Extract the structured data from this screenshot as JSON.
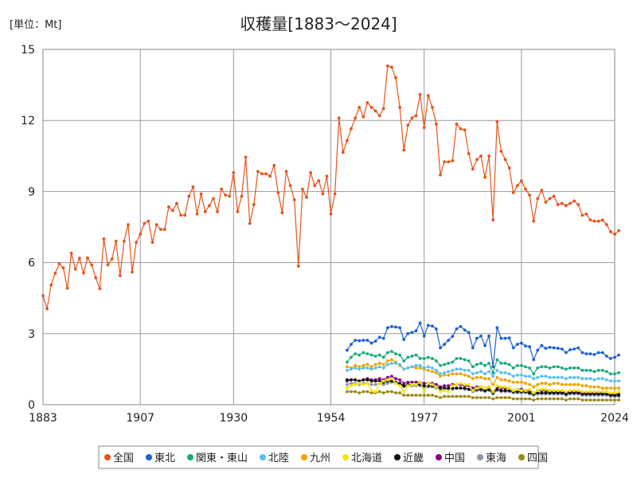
{
  "chart_data": {
    "type": "line",
    "title": "収穫量[1883～2024]",
    "unit_label": "[単位：Mt]",
    "xlabel": "",
    "ylabel": "",
    "xlim": [
      1883,
      2024
    ],
    "ylim": [
      0,
      15
    ],
    "x_ticks": [
      1883,
      1907,
      1930,
      1954,
      1977,
      2001,
      2024
    ],
    "y_ticks": [
      0,
      3,
      6,
      9,
      12,
      15
    ],
    "grid": true,
    "legend_position": "bottom",
    "series": [
      {
        "name": "全国",
        "color": "#E8541C",
        "x_start": 1883,
        "values": [
          4.6,
          4.05,
          5.05,
          5.55,
          5.95,
          5.78,
          4.92,
          6.4,
          5.72,
          6.18,
          5.56,
          6.2,
          5.9,
          5.36,
          4.9,
          7.0,
          5.9,
          6.15,
          6.9,
          5.45,
          6.9,
          7.6,
          5.6,
          6.85,
          7.2,
          7.65,
          7.75,
          6.85,
          7.6,
          7.4,
          7.4,
          8.35,
          8.2,
          8.5,
          8.0,
          8.0,
          8.8,
          9.2,
          8.05,
          8.9,
          8.15,
          8.4,
          8.7,
          8.15,
          9.1,
          8.85,
          8.8,
          9.8,
          8.15,
          8.8,
          10.45,
          7.65,
          8.45,
          9.85,
          9.75,
          9.75,
          9.65,
          10.1,
          8.95,
          8.1,
          9.85,
          9.25,
          8.65,
          5.85,
          9.1,
          8.75,
          9.8,
          9.25,
          9.45,
          8.9,
          9.65,
          8.05,
          8.9,
          12.1,
          10.65,
          11.15,
          11.65,
          12.1,
          12.55,
          12.15,
          12.75,
          12.55,
          12.4,
          12.2,
          12.5,
          14.3,
          14.25,
          13.8,
          12.55,
          10.75,
          11.8,
          12.1,
          12.2,
          13.1,
          11.7,
          13.05,
          12.55,
          11.85,
          9.7,
          10.25,
          10.25,
          10.3,
          11.85,
          11.65,
          11.6,
          10.6,
          9.95,
          10.35,
          10.5,
          9.6,
          10.5,
          7.8,
          11.95,
          10.7,
          10.35,
          10.0,
          8.95,
          9.25,
          9.45,
          9.1,
          8.85,
          7.75,
          8.7,
          9.05,
          8.55,
          8.7,
          8.8,
          8.45,
          8.5,
          8.4,
          8.5,
          8.6,
          8.45,
          8.0,
          8.05,
          7.8,
          7.75,
          7.75,
          7.8,
          7.6,
          7.3,
          7.2,
          7.35
        ]
      },
      {
        "name": "東北",
        "color": "#1F5FD6",
        "x_start": 1958,
        "values": [
          2.3,
          2.55,
          2.72,
          2.7,
          2.72,
          2.72,
          2.6,
          2.68,
          2.85,
          2.8,
          3.25,
          3.3,
          3.28,
          3.25,
          2.75,
          3.0,
          3.05,
          3.12,
          3.45,
          2.9,
          3.35,
          3.32,
          3.2,
          2.4,
          2.55,
          2.72,
          2.88,
          3.2,
          3.3,
          3.15,
          3.05,
          2.4,
          2.8,
          2.9,
          2.5,
          2.9,
          1.6,
          3.25,
          2.8,
          2.8,
          2.82,
          2.4,
          2.55,
          2.6,
          2.48,
          2.45,
          1.9,
          2.3,
          2.5,
          2.38,
          2.42,
          2.4,
          2.38,
          2.35,
          2.2,
          2.32,
          2.35,
          2.4,
          2.2,
          2.15,
          2.15,
          2.12,
          2.2,
          2.2,
          2.05,
          1.95,
          2.0,
          2.1
        ]
      },
      {
        "name": "関東・東山",
        "color": "#1AAA7A",
        "x_start": 1958,
        "values": [
          1.8,
          2.0,
          2.15,
          2.1,
          2.2,
          2.15,
          2.1,
          2.05,
          2.1,
          2.0,
          2.2,
          2.25,
          2.15,
          2.1,
          1.85,
          2.0,
          2.05,
          2.1,
          1.95,
          1.95,
          2.0,
          1.95,
          1.85,
          1.65,
          1.7,
          1.75,
          1.8,
          1.95,
          1.95,
          1.9,
          1.85,
          1.6,
          1.7,
          1.75,
          1.65,
          1.75,
          1.35,
          1.9,
          1.75,
          1.75,
          1.7,
          1.55,
          1.65,
          1.65,
          1.6,
          1.55,
          1.3,
          1.55,
          1.6,
          1.6,
          1.55,
          1.6,
          1.6,
          1.55,
          1.5,
          1.55,
          1.55,
          1.55,
          1.45,
          1.45,
          1.45,
          1.4,
          1.45,
          1.45,
          1.4,
          1.3,
          1.3,
          1.35
        ]
      },
      {
        "name": "北陸",
        "color": "#5BC0EB",
        "x_start": 1958,
        "values": [
          1.45,
          1.5,
          1.55,
          1.5,
          1.55,
          1.55,
          1.5,
          1.55,
          1.6,
          1.55,
          1.7,
          1.75,
          1.75,
          1.7,
          1.5,
          1.55,
          1.6,
          1.65,
          1.65,
          1.55,
          1.6,
          1.55,
          1.45,
          1.3,
          1.35,
          1.4,
          1.45,
          1.5,
          1.5,
          1.45,
          1.45,
          1.3,
          1.35,
          1.4,
          1.3,
          1.4,
          1.2,
          1.45,
          1.35,
          1.35,
          1.3,
          1.2,
          1.25,
          1.25,
          1.2,
          1.2,
          1.1,
          1.15,
          1.2,
          1.2,
          1.15,
          1.15,
          1.15,
          1.15,
          1.1,
          1.15,
          1.15,
          1.15,
          1.1,
          1.1,
          1.1,
          1.05,
          1.1,
          1.1,
          1.05,
          1.0,
          1.0,
          1.0
        ]
      },
      {
        "name": "九州",
        "color": "#F0A500",
        "x_start": 1958,
        "values": [
          1.6,
          1.55,
          1.65,
          1.6,
          1.65,
          1.7,
          1.6,
          1.7,
          1.75,
          1.7,
          1.85,
          1.9,
          1.8,
          1.65,
          1.5,
          1.55,
          1.6,
          1.55,
          1.55,
          1.5,
          1.45,
          1.4,
          1.35,
          1.2,
          1.25,
          1.25,
          1.3,
          1.3,
          1.3,
          1.25,
          1.2,
          1.1,
          1.15,
          1.15,
          1.1,
          1.1,
          0.85,
          1.15,
          1.05,
          1.05,
          1.0,
          0.95,
          0.95,
          0.95,
          0.9,
          0.85,
          0.75,
          0.85,
          0.9,
          0.9,
          0.85,
          0.9,
          0.9,
          0.85,
          0.85,
          0.85,
          0.85,
          0.85,
          0.8,
          0.8,
          0.75,
          0.75,
          0.75,
          0.7,
          0.7,
          0.7,
          0.7,
          0.7
        ]
      },
      {
        "name": "北海道",
        "color": "#F2E600",
        "x_start": 1958,
        "values": [
          0.7,
          0.8,
          0.85,
          0.9,
          0.85,
          0.9,
          0.6,
          0.55,
          0.9,
          1.0,
          1.05,
          1.1,
          0.9,
          0.8,
          0.55,
          0.8,
          0.85,
          0.85,
          0.95,
          0.55,
          0.9,
          0.85,
          0.75,
          0.55,
          0.6,
          0.55,
          0.8,
          0.85,
          0.9,
          0.85,
          0.85,
          0.6,
          0.7,
          0.75,
          0.7,
          0.75,
          0.55,
          0.8,
          0.75,
          0.75,
          0.7,
          0.6,
          0.65,
          0.6,
          0.6,
          0.65,
          0.5,
          0.6,
          0.65,
          0.65,
          0.6,
          0.6,
          0.6,
          0.6,
          0.55,
          0.6,
          0.6,
          0.6,
          0.55,
          0.55,
          0.55,
          0.55,
          0.55,
          0.55,
          0.55,
          0.5,
          0.5,
          0.55
        ]
      },
      {
        "name": "近畿",
        "color": "#111111",
        "x_start": 1958,
        "values": [
          1.05,
          1.05,
          1.05,
          1.0,
          1.05,
          1.05,
          1.0,
          1.0,
          1.0,
          0.95,
          1.0,
          1.0,
          0.95,
          0.9,
          0.8,
          0.85,
          0.85,
          0.85,
          0.85,
          0.8,
          0.8,
          0.8,
          0.75,
          0.7,
          0.7,
          0.7,
          0.7,
          0.7,
          0.7,
          0.7,
          0.65,
          0.6,
          0.65,
          0.65,
          0.6,
          0.65,
          0.5,
          0.65,
          0.6,
          0.6,
          0.6,
          0.55,
          0.55,
          0.55,
          0.55,
          0.5,
          0.45,
          0.5,
          0.5,
          0.5,
          0.5,
          0.5,
          0.5,
          0.5,
          0.45,
          0.5,
          0.5,
          0.5,
          0.45,
          0.45,
          0.45,
          0.45,
          0.45,
          0.45,
          0.45,
          0.4,
          0.4,
          0.4
        ]
      },
      {
        "name": "中国",
        "color": "#8B008B",
        "x_start": 1958,
        "values": [
          1.0,
          1.05,
          1.05,
          1.0,
          1.05,
          1.1,
          1.05,
          1.05,
          1.1,
          1.05,
          1.15,
          1.2,
          1.1,
          1.05,
          0.9,
          0.95,
          0.95,
          0.95,
          0.95,
          0.9,
          0.9,
          0.9,
          0.85,
          0.75,
          0.8,
          0.8,
          0.85,
          0.85,
          0.85,
          0.8,
          0.8,
          0.7,
          0.75,
          0.75,
          0.7,
          0.75,
          0.55,
          0.75,
          0.7,
          0.7,
          0.7,
          0.6,
          0.65,
          0.65,
          0.6,
          0.6,
          0.5,
          0.6,
          0.6,
          0.6,
          0.55,
          0.55,
          0.55,
          0.55,
          0.5,
          0.55,
          0.55,
          0.55,
          0.5,
          0.5,
          0.5,
          0.5,
          0.5,
          0.5,
          0.45,
          0.45,
          0.45,
          0.45
        ]
      },
      {
        "name": "東海",
        "color": "#8A96A8",
        "x_start": 1958,
        "values": [
          0.85,
          0.9,
          0.9,
          0.85,
          0.9,
          0.9,
          0.85,
          0.85,
          0.9,
          0.85,
          0.9,
          0.95,
          0.9,
          0.85,
          0.75,
          0.8,
          0.8,
          0.8,
          0.8,
          0.75,
          0.75,
          0.75,
          0.7,
          0.6,
          0.65,
          0.65,
          0.65,
          0.7,
          0.7,
          0.65,
          0.65,
          0.55,
          0.6,
          0.6,
          0.55,
          0.6,
          0.45,
          0.6,
          0.55,
          0.55,
          0.55,
          0.5,
          0.5,
          0.5,
          0.5,
          0.45,
          0.4,
          0.45,
          0.45,
          0.45,
          0.45,
          0.45,
          0.45,
          0.45,
          0.4,
          0.45,
          0.45,
          0.45,
          0.4,
          0.4,
          0.4,
          0.4,
          0.4,
          0.4,
          0.4,
          0.35,
          0.35,
          0.35
        ]
      },
      {
        "name": "四国",
        "color": "#9C8A14",
        "x_start": 1958,
        "values": [
          0.55,
          0.55,
          0.55,
          0.5,
          0.55,
          0.55,
          0.5,
          0.5,
          0.55,
          0.5,
          0.55,
          0.55,
          0.5,
          0.5,
          0.4,
          0.4,
          0.4,
          0.4,
          0.4,
          0.4,
          0.4,
          0.4,
          0.35,
          0.3,
          0.35,
          0.35,
          0.35,
          0.35,
          0.35,
          0.35,
          0.35,
          0.3,
          0.3,
          0.3,
          0.3,
          0.3,
          0.25,
          0.3,
          0.3,
          0.3,
          0.3,
          0.25,
          0.25,
          0.25,
          0.25,
          0.25,
          0.2,
          0.25,
          0.25,
          0.25,
          0.25,
          0.25,
          0.25,
          0.25,
          0.2,
          0.25,
          0.25,
          0.25,
          0.2,
          0.2,
          0.2,
          0.2,
          0.2,
          0.2,
          0.2,
          0.2,
          0.2,
          0.2
        ]
      }
    ]
  }
}
